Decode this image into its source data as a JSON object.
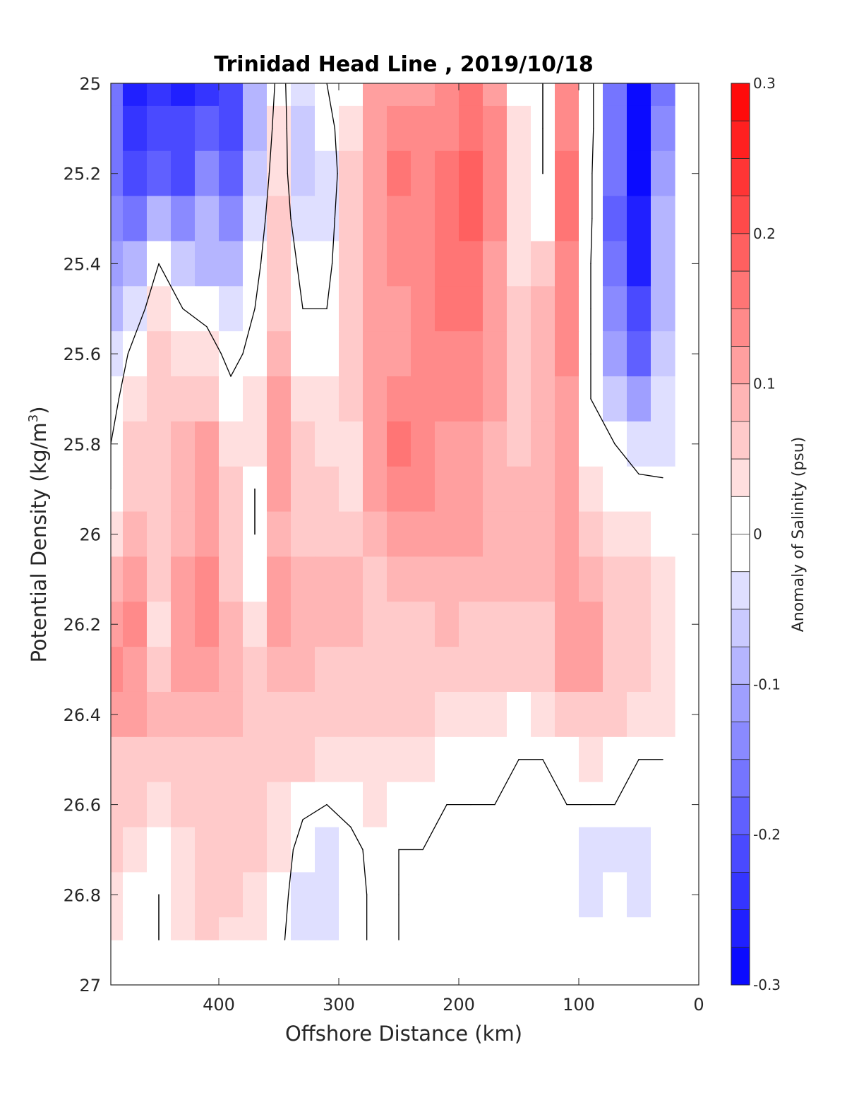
{
  "chart_data": {
    "type": "heatmap",
    "title": "Trinidad Head Line , 2019/10/18",
    "xlabel": "Offshore Distance (km)",
    "ylabel_main": "Potential Density (kg/m",
    "ylabel_sup": "3",
    "ylabel_end": ")",
    "colorbar_label": "Anomaly of Salinity (psu)",
    "x_reversed": true,
    "xlim": [
      0,
      490
    ],
    "ylim": [
      25,
      27
    ],
    "y_reversed": true,
    "x_ticks": [
      "400",
      "300",
      "200",
      "100",
      "0"
    ],
    "x_tick_values": [
      400,
      300,
      200,
      100,
      0
    ],
    "y_ticks": [
      "25",
      "25.2",
      "25.4",
      "25.6",
      "25.8",
      "26",
      "26.2",
      "26.4",
      "26.6",
      "26.8",
      "27"
    ],
    "y_tick_values": [
      25,
      25.2,
      25.4,
      25.6,
      25.8,
      26,
      26.2,
      26.4,
      26.6,
      26.8,
      27
    ],
    "colorbar_ticks": [
      "0.3",
      "0.2",
      "0.1",
      "0",
      "-0.1",
      "-0.2",
      "-0.3"
    ],
    "colorbar_tick_values": [
      0.3,
      0.2,
      0.1,
      0,
      -0.1,
      -0.2,
      -0.3
    ],
    "clim": [
      -0.3,
      0.3
    ],
    "levels": 24,
    "colormap": "blue-white-red",
    "contour_line_at": 0,
    "data_extent": {
      "x": [
        20,
        490
      ],
      "y": [
        25,
        26.9
      ]
    },
    "grid_x": [
      490,
      470,
      450,
      430,
      410,
      390,
      370,
      350,
      330,
      310,
      290,
      270,
      250,
      230,
      210,
      190,
      170,
      150,
      130,
      110,
      90,
      70,
      50,
      30
    ],
    "grid_y": [
      25.0,
      25.1,
      25.2,
      25.3,
      25.4,
      25.5,
      25.6,
      25.7,
      25.8,
      25.9,
      26.0,
      26.1,
      26.2,
      26.3,
      26.4,
      26.5,
      26.6,
      26.7,
      26.8,
      26.9
    ],
    "values": [
      [
        -0.16,
        -0.26,
        -0.24,
        -0.27,
        -0.24,
        -0.22,
        -0.1,
        0.02,
        -0.05,
        0,
        0.02,
        0.1,
        0.12,
        0.12,
        0.13,
        0.16,
        0.12,
        0.02,
        0,
        0.14,
        0.02,
        -0.16,
        -0.3,
        -0.16
      ],
      [
        -0.16,
        -0.24,
        -0.2,
        -0.22,
        -0.18,
        -0.2,
        -0.08,
        0.03,
        -0.06,
        -0.02,
        0.04,
        0.11,
        0.13,
        0.13,
        0.14,
        0.17,
        0.13,
        0.03,
        0,
        0.14,
        0.02,
        -0.16,
        -0.3,
        -0.14
      ],
      [
        -0.16,
        -0.2,
        -0.18,
        -0.2,
        -0.14,
        -0.18,
        -0.06,
        0.04,
        -0.07,
        -0.04,
        0.05,
        0.12,
        0.15,
        0.13,
        0.15,
        0.18,
        0.13,
        0.04,
        0,
        0.15,
        0.01,
        -0.17,
        -0.28,
        -0.12
      ],
      [
        -0.14,
        -0.16,
        -0.1,
        -0.14,
        -0.1,
        -0.15,
        -0.04,
        0.05,
        -0.05,
        -0.03,
        0.06,
        0.12,
        0.14,
        0.14,
        0.16,
        0.19,
        0.13,
        0.04,
        0.02,
        0.15,
        0.01,
        -0.18,
        -0.27,
        -0.1
      ],
      [
        -0.12,
        -0.1,
        0,
        -0.06,
        -0.08,
        -0.1,
        -0.02,
        0.06,
        -0.02,
        -0.02,
        0.07,
        0.12,
        0.13,
        0.14,
        0.16,
        0.17,
        0.12,
        0.04,
        0.06,
        0.14,
        0,
        -0.17,
        -0.25,
        -0.09
      ],
      [
        -0.08,
        -0.03,
        0.04,
        0,
        -0.02,
        -0.05,
        0,
        0.07,
        0,
        0,
        0.07,
        0.12,
        0.12,
        0.14,
        0.15,
        0.15,
        0.11,
        0.05,
        0.08,
        0.14,
        0,
        -0.15,
        -0.22,
        -0.08
      ],
      [
        -0.05,
        0.02,
        0.06,
        0.03,
        0.03,
        -0.02,
        0.02,
        0.08,
        0.02,
        0.02,
        0.06,
        0.12,
        0.12,
        0.14,
        0.14,
        0.14,
        0.11,
        0.06,
        0.08,
        0.13,
        0,
        -0.12,
        -0.18,
        -0.07
      ],
      [
        -0.02,
        0.04,
        0.06,
        0.06,
        0.07,
        0.02,
        0.04,
        0.1,
        0.04,
        0.03,
        0.05,
        0.12,
        0.14,
        0.14,
        0.13,
        0.13,
        0.1,
        0.06,
        0.08,
        0.12,
        0,
        -0.06,
        -0.12,
        -0.05
      ],
      [
        0,
        0.05,
        0.07,
        0.08,
        0.1,
        0.03,
        0.04,
        0.11,
        0.06,
        0.04,
        0.04,
        0.11,
        0.16,
        0.14,
        0.12,
        0.12,
        0.09,
        0.07,
        0.09,
        0.12,
        0.01,
        0,
        -0.04,
        -0.03
      ],
      [
        0,
        0.06,
        0.07,
        0.09,
        0.11,
        0.05,
        0,
        0.1,
        0.07,
        0.05,
        0.04,
        0.1,
        0.14,
        0.13,
        0.11,
        0.11,
        0.09,
        0.08,
        0.09,
        0.12,
        0.04,
        0.01,
        0.02,
        0.01
      ],
      [
        0.03,
        0.08,
        0.06,
        0.09,
        0.12,
        0.06,
        0,
        0.09,
        0.07,
        0.06,
        0.06,
        0.08,
        0.11,
        0.11,
        0.1,
        0.1,
        0.09,
        0.08,
        0.08,
        0.11,
        0.06,
        0.04,
        0.04,
        0.02
      ],
      [
        0.09,
        0.12,
        0.05,
        0.1,
        0.13,
        0.07,
        0.02,
        0.1,
        0.08,
        0.08,
        0.08,
        0.07,
        0.09,
        0.08,
        0.09,
        0.08,
        0.08,
        0.08,
        0.08,
        0.1,
        0.08,
        0.06,
        0.05,
        0.03
      ],
      [
        0.12,
        0.13,
        0.03,
        0.1,
        0.14,
        0.08,
        0.04,
        0.1,
        0.08,
        0.09,
        0.08,
        0.07,
        0.06,
        0.07,
        0.08,
        0.07,
        0.07,
        0.07,
        0.07,
        0.11,
        0.1,
        0.07,
        0.05,
        0.04
      ],
      [
        0.13,
        0.12,
        0.05,
        0.1,
        0.11,
        0.08,
        0.06,
        0.08,
        0.08,
        0.07,
        0.07,
        0.06,
        0.06,
        0.06,
        0.06,
        0.06,
        0.05,
        0.05,
        0.06,
        0.1,
        0.11,
        0.07,
        0.05,
        0.04
      ],
      [
        0.11,
        0.1,
        0.08,
        0.09,
        0.09,
        0.08,
        0.07,
        0.07,
        0.07,
        0.06,
        0.06,
        0.05,
        0.05,
        0.05,
        0.04,
        0.03,
        0.03,
        0.01,
        0.03,
        0.06,
        0.07,
        0.06,
        0.04,
        0.03
      ],
      [
        0.07,
        0.07,
        0.07,
        0.07,
        0.07,
        0.06,
        0.06,
        0.05,
        0.05,
        0.04,
        0.04,
        0.04,
        0.04,
        0.03,
        0.02,
        0.02,
        0.01,
        0,
        0,
        0.02,
        0.03,
        0.02,
        0,
        0
      ],
      [
        0.05,
        0.05,
        0.04,
        0.05,
        0.05,
        0.05,
        0.05,
        0.04,
        0.01,
        0,
        0.01,
        0.03,
        0.02,
        0.01,
        0,
        0,
        0,
        0,
        0,
        0,
        0,
        0,
        0,
        0
      ],
      [
        0.05,
        0.04,
        0.02,
        0.04,
        0.05,
        0.05,
        0.05,
        0.03,
        -0.02,
        -0.03,
        -0.01,
        0.01,
        0,
        0,
        0,
        0,
        0,
        0,
        -0.02,
        -0.02,
        -0.03,
        -0.03,
        -0.03,
        -0.01
      ],
      [
        0.04,
        0.02,
        0,
        0.03,
        0.05,
        0.05,
        0.04,
        0.02,
        -0.03,
        -0.05,
        -0.02,
        0.01,
        0,
        0,
        0,
        0,
        0,
        -0.01,
        -0.02,
        -0.02,
        -0.03,
        -0.02,
        -0.03,
        -0.01
      ],
      [
        0.04,
        0.02,
        0,
        0.03,
        0.05,
        0.04,
        0.03,
        0.01,
        -0.03,
        -0.04,
        -0.02,
        0.01,
        0,
        0,
        0,
        0,
        0,
        -0.02,
        -0.02,
        -0.02,
        -0.02,
        -0.02,
        -0.02,
        -0.01
      ]
    ]
  }
}
